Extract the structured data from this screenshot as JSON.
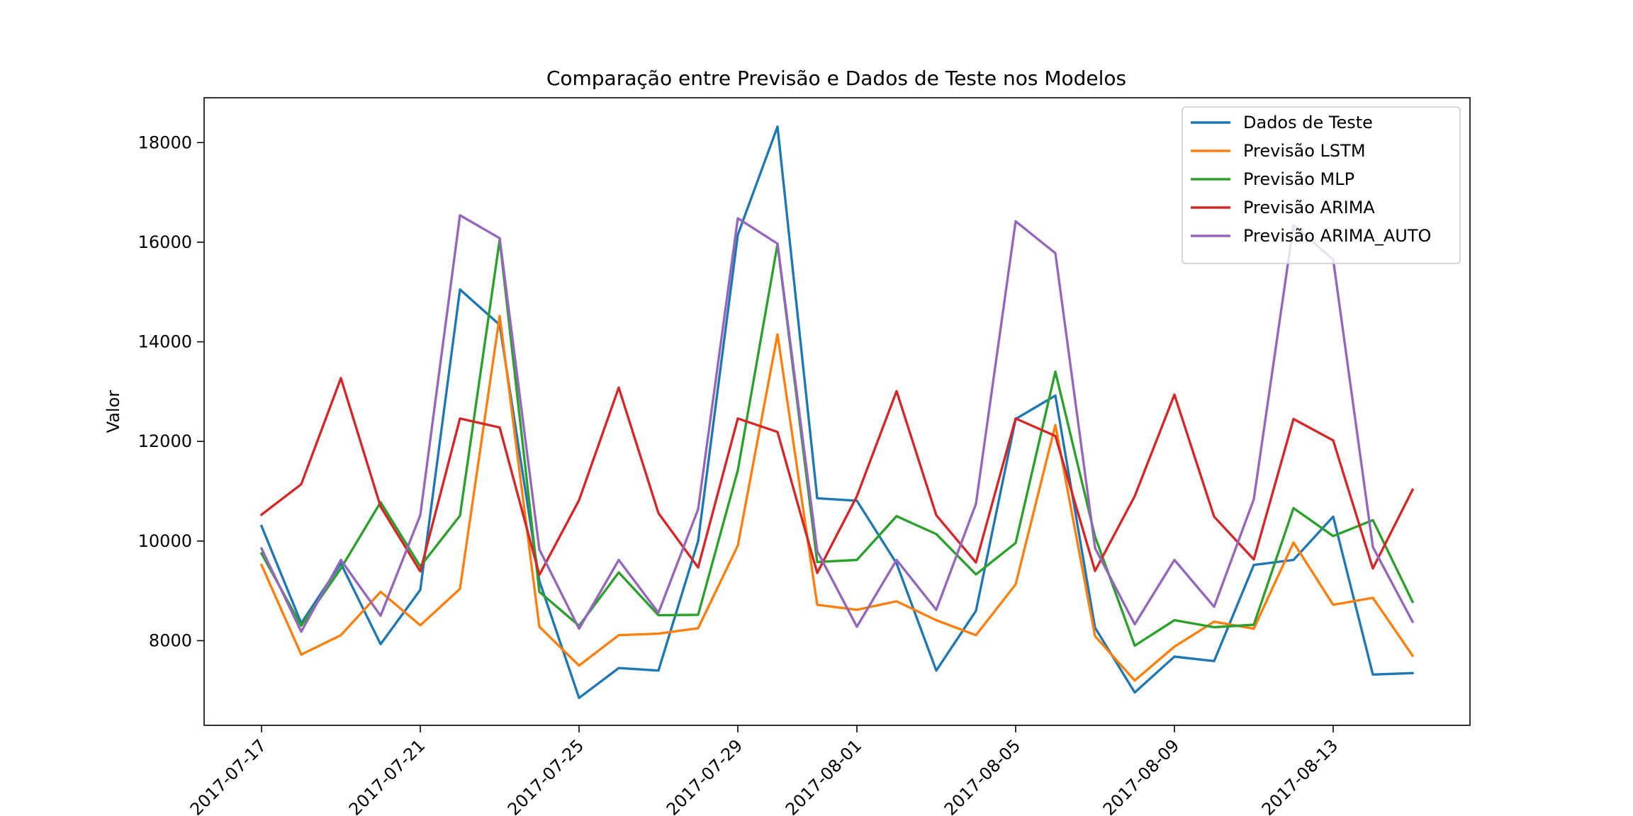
{
  "chart_data": {
    "type": "line",
    "title": "Comparação entre Previsão e Dados de Teste nos Modelos",
    "xlabel": "",
    "ylabel": "Valor",
    "x": [
      "2017-07-17",
      "2017-07-18",
      "2017-07-19",
      "2017-07-20",
      "2017-07-21",
      "2017-07-22",
      "2017-07-23",
      "2017-07-24",
      "2017-07-25",
      "2017-07-26",
      "2017-07-27",
      "2017-07-28",
      "2017-07-29",
      "2017-07-30",
      "2017-07-31",
      "2017-08-01",
      "2017-08-02",
      "2017-08-03",
      "2017-08-04",
      "2017-08-05",
      "2017-08-06",
      "2017-08-07",
      "2017-08-08",
      "2017-08-09",
      "2017-08-10",
      "2017-08-11",
      "2017-08-12",
      "2017-08-13",
      "2017-08-14",
      "2017-08-15"
    ],
    "x_tick_labels": [
      "2017-07-17",
      "2017-07-21",
      "2017-07-25",
      "2017-07-29",
      "2017-08-01",
      "2017-08-05",
      "2017-08-09",
      "2017-08-13"
    ],
    "y_ticks": [
      8000,
      10000,
      12000,
      14000,
      16000,
      18000
    ],
    "y_tick_labels": [
      "8000",
      "10000",
      "12000",
      "14000",
      "16000",
      "18000"
    ],
    "ylim": [
      6300,
      18900
    ],
    "grid": false,
    "legend_position": "top-right",
    "series": [
      {
        "name": "Dados de Teste",
        "color": "#1f77b4",
        "values": [
          10300,
          8350,
          9550,
          7930,
          9020,
          15050,
          14340,
          9200,
          6850,
          7450,
          7400,
          10000,
          16150,
          18320,
          10860,
          10810,
          9550,
          7400,
          8600,
          12450,
          12920,
          8260,
          6960,
          7680,
          7590,
          9520,
          9620,
          10490,
          7320,
          7350
        ]
      },
      {
        "name": "Previsão LSTM",
        "color": "#ff7f0e",
        "values": [
          9520,
          7720,
          8110,
          8980,
          8310,
          9040,
          14520,
          8280,
          7500,
          8110,
          8140,
          8250,
          9910,
          14150,
          8720,
          8620,
          8790,
          8410,
          8110,
          9130,
          12330,
          8090,
          7200,
          7880,
          8380,
          8240,
          9970,
          8720,
          8860,
          7700
        ]
      },
      {
        "name": "Previsão MLP",
        "color": "#2ca02c",
        "values": [
          9750,
          8300,
          9450,
          10780,
          9490,
          10510,
          16050,
          8980,
          8300,
          9370,
          8510,
          8520,
          11420,
          15960,
          9580,
          9620,
          10500,
          10140,
          9330,
          9960,
          13400,
          10090,
          7900,
          8410,
          8270,
          8320,
          10660,
          10100,
          10420,
          8780
        ]
      },
      {
        "name": "Previsão ARIMA",
        "color": "#d62728",
        "values": [
          10530,
          11140,
          13270,
          10690,
          9390,
          12460,
          12280,
          9320,
          10820,
          13080,
          10560,
          9470,
          12460,
          12190,
          9360,
          10900,
          13010,
          10520,
          9570,
          12460,
          12110,
          9400,
          10900,
          12940,
          10490,
          9630,
          12450,
          12020,
          9450,
          11030
        ]
      },
      {
        "name": "Previsão ARIMA_AUTO",
        "color": "#9467bd",
        "values": [
          9850,
          8180,
          9620,
          8500,
          10520,
          16540,
          16080,
          9830,
          8240,
          9620,
          8560,
          10640,
          16480,
          15970,
          9800,
          8280,
          9620,
          8620,
          10750,
          16420,
          15780,
          9860,
          8330,
          9620,
          8680,
          10840,
          16340,
          15650,
          9880,
          8380
        ]
      }
    ]
  }
}
